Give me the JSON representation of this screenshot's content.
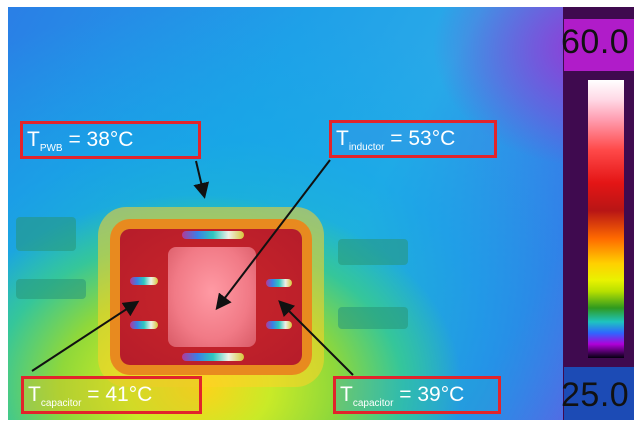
{
  "scale": {
    "max_label": "60.0",
    "min_label": "25.0"
  },
  "callouts": {
    "pwb": {
      "symbol": "T",
      "subscript": "PWB",
      "rest": " = 38°C"
    },
    "inductor": {
      "symbol": "T",
      "subscript": "inductor",
      "rest": " = 53°C"
    },
    "capacitor_left": {
      "symbol": "T",
      "subscript": "capacitor",
      "rest": " = 41°C"
    },
    "capacitor_right": {
      "symbol": "T",
      "subscript": "capacitor",
      "rest": " = 39°C"
    }
  },
  "colors": {
    "callout_border": "#e2242b",
    "arrow": "#111111",
    "label_text": "#ffffff"
  }
}
